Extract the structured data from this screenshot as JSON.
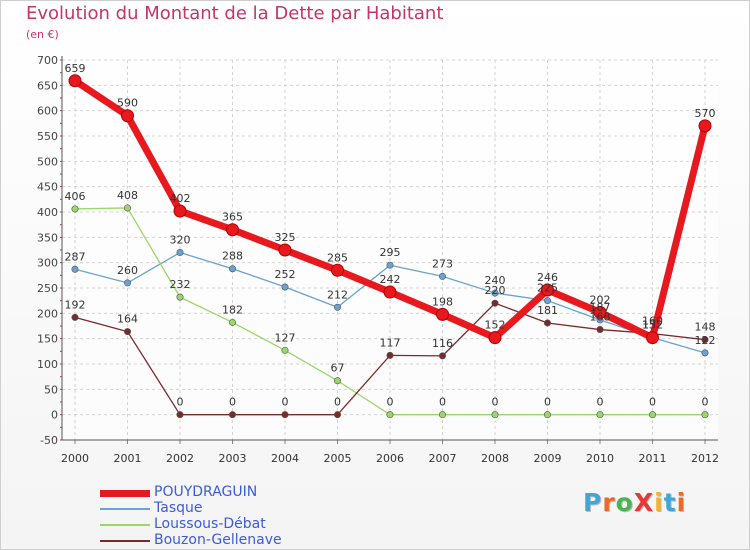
{
  "title": "Evolution du Montant de la Dette par Habitant",
  "unit": "(en €)",
  "logo": {
    "text": "ProXiti",
    "colors": [
      "#3fa6d8",
      "#ea6a2b",
      "#49b54f",
      "#e23a3a",
      "#f2b233",
      "#3fa6d8",
      "#ea6a2b"
    ]
  },
  "chart_data": {
    "type": "line",
    "title": "Evolution du Montant de la Dette par Habitant",
    "ylabel": "(en €)",
    "xlabel": "",
    "x": [
      "2000",
      "2001",
      "2002",
      "2003",
      "2004",
      "2005",
      "2006",
      "2007",
      "2008",
      "2009",
      "2010",
      "2011",
      "2012"
    ],
    "ylim": [
      -50,
      700
    ],
    "yticks": [
      -50,
      0,
      50,
      100,
      150,
      200,
      250,
      300,
      350,
      400,
      450,
      500,
      550,
      600,
      650,
      700
    ],
    "ytick_labels": [
      "-50",
      "0",
      "50",
      "100",
      "150",
      "200",
      "250",
      "300",
      "350",
      "400",
      "450",
      "500",
      "550",
      "600",
      "650",
      "700"
    ],
    "grid": true,
    "legend_position": "bottom-left",
    "series": [
      {
        "name": "POUYDRAGUIN",
        "color": "#e8191e",
        "values": [
          659,
          590,
          402,
          365,
          325,
          285,
          242,
          198,
          152,
          246,
          202,
          152,
          570
        ],
        "labels": [
          "659",
          "590",
          "402",
          "365",
          "325",
          "285",
          "242",
          "198",
          "152",
          "246",
          "202",
          "152",
          "570"
        ]
      },
      {
        "name": "Tasque",
        "color": "#6aa2d2",
        "values": [
          287,
          260,
          320,
          288,
          252,
          212,
          295,
          273,
          240,
          225,
          187,
          152,
          122
        ],
        "labels": [
          "287",
          "260",
          "320",
          "288",
          "252",
          "212",
          "295",
          "273",
          "240",
          "225",
          "187",
          "152",
          "122"
        ]
      },
      {
        "name": "Loussous-Débat",
        "color": "#9bd66a",
        "values": [
          406,
          408,
          232,
          182,
          127,
          67,
          0,
          0,
          0,
          0,
          0,
          0,
          0
        ],
        "labels": [
          "406",
          "408",
          "232",
          "182",
          "127",
          "67",
          "0",
          "0",
          "0",
          "0",
          "0",
          "0",
          "0"
        ]
      },
      {
        "name": "Bouzon-Gellenave",
        "color": "#7a2a2a",
        "values": [
          192,
          164,
          0,
          0,
          0,
          0,
          117,
          116,
          220,
          181,
          168,
          160,
          148
        ],
        "labels": [
          "192",
          "164",
          "0",
          "0",
          "0",
          "0",
          "117",
          "116",
          "220",
          "181",
          "168",
          "160",
          "148"
        ]
      }
    ]
  }
}
